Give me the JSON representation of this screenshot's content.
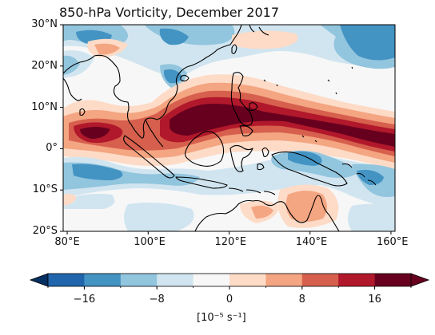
{
  "map": {
    "title": "850-hPa Vorticity, December 2017",
    "projection": "PlateCarree",
    "extent": {
      "lon": [
        79,
        161
      ],
      "lat": [
        -20,
        30
      ]
    },
    "lat_ticks": [
      {
        "value": 30,
        "label": "30°N"
      },
      {
        "value": 20,
        "label": "20°N"
      },
      {
        "value": 10,
        "label": "10°N"
      },
      {
        "value": 0,
        "label": "0°"
      },
      {
        "value": -10,
        "label": "10°S"
      },
      {
        "value": -20,
        "label": "20°S"
      }
    ],
    "lon_ticks": [
      {
        "value": 80,
        "label": "80°E"
      },
      {
        "value": 100,
        "label": "100°E"
      },
      {
        "value": 120,
        "label": "120°E"
      },
      {
        "value": 140,
        "label": "140°E"
      },
      {
        "value": 160,
        "label": "160°E"
      }
    ],
    "field": "850-hPa relative vorticity",
    "coastlines": true
  },
  "colorbar": {
    "levels": [
      -20,
      -16,
      -12,
      -8,
      -4,
      0,
      4,
      8,
      12,
      16,
      20
    ],
    "colors": [
      "#2166ac",
      "#4393c3",
      "#92c5de",
      "#d1e5f0",
      "#f7f7f7",
      "#fddbc7",
      "#f4a582",
      "#d6604d",
      "#b2182b",
      "#67001f"
    ],
    "extend_min_color": "#053061",
    "extend_max_color": "#67001f",
    "tick_labels": [
      {
        "value": -16,
        "label": "−16"
      },
      {
        "value": -8,
        "label": "−8"
      },
      {
        "value": 0,
        "label": "0"
      },
      {
        "value": 8,
        "label": "8"
      },
      {
        "value": 16,
        "label": "16"
      }
    ],
    "units": "[10⁻⁵ s⁻¹]"
  }
}
